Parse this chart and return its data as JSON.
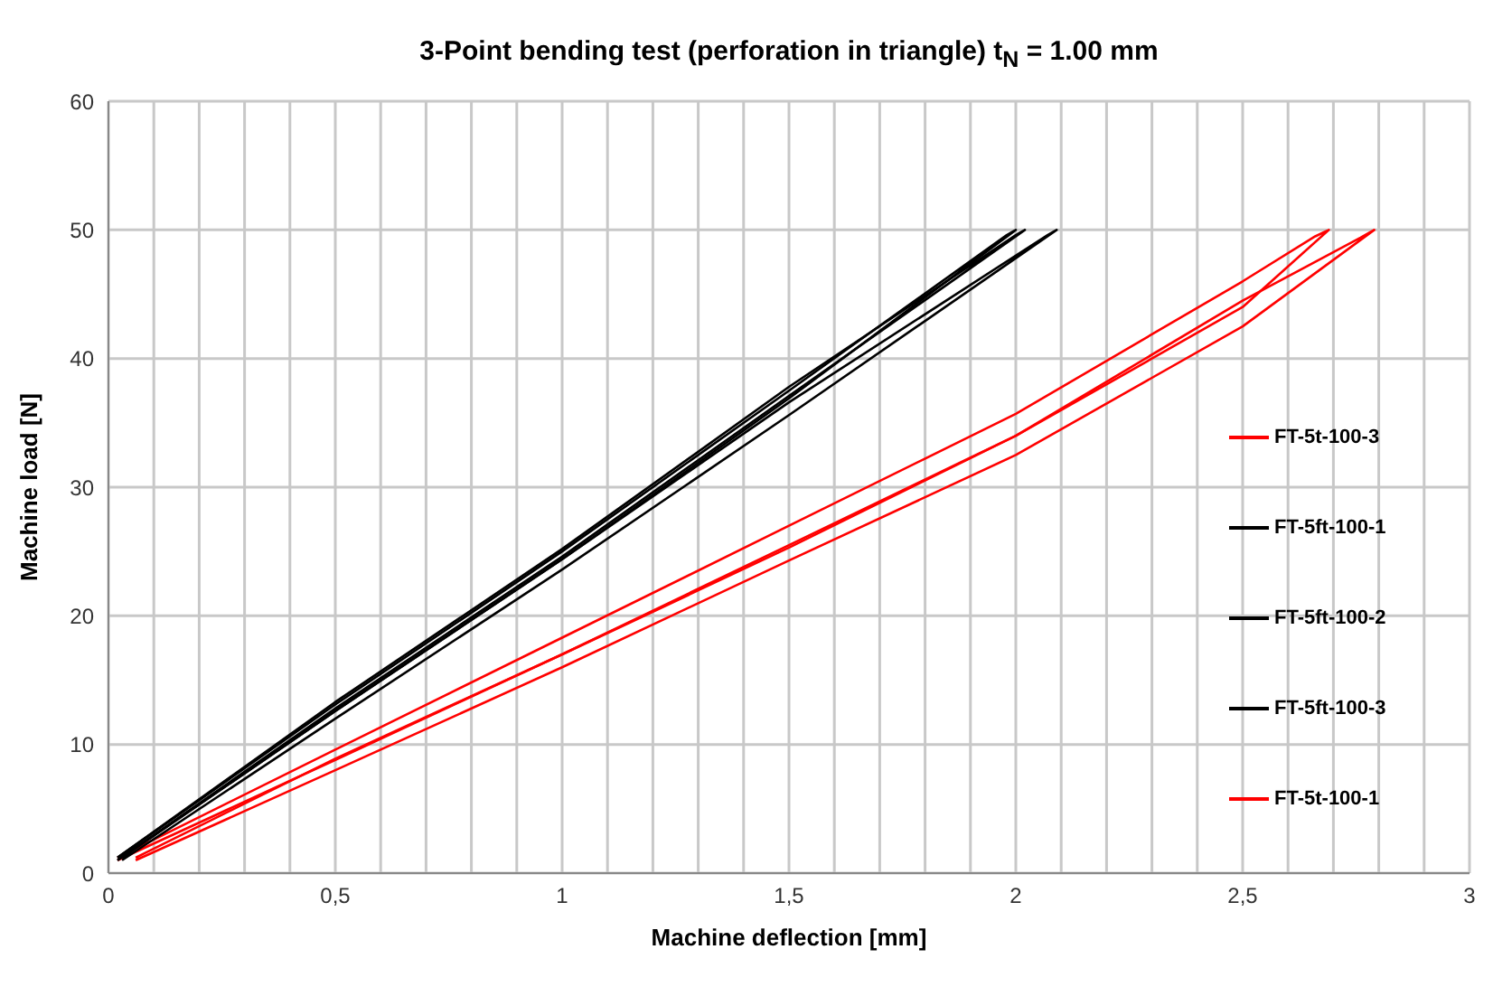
{
  "chart_data": {
    "type": "line",
    "title": "3-Point bending test (perforation in triangle) t$_{N}$ = 1.00 mm",
    "xlabel": "Machine deflection [mm]",
    "ylabel": "Machine load [N]",
    "xlim": [
      0,
      3
    ],
    "ylim": [
      0,
      60
    ],
    "xticks": [
      0,
      {
        "value": 0.1,
        "label": null
      },
      {
        "value": 0.2,
        "label": null
      },
      {
        "value": 0.3,
        "label": null
      },
      {
        "value": 0.4,
        "label": null
      },
      {
        "value": 0.5,
        "label": "0,5"
      },
      {
        "value": 0.6,
        "label": null
      },
      {
        "value": 0.7,
        "label": null
      },
      {
        "value": 0.8,
        "label": null
      },
      {
        "value": 0.9,
        "label": null
      },
      1,
      {
        "value": 1.1,
        "label": null
      },
      {
        "value": 1.2,
        "label": null
      },
      {
        "value": 1.3,
        "label": null
      },
      {
        "value": 1.4,
        "label": null
      },
      {
        "value": 1.5,
        "label": "1,5"
      },
      {
        "value": 1.6,
        "label": null
      },
      {
        "value": 1.7,
        "label": null
      },
      {
        "value": 1.8,
        "label": null
      },
      {
        "value": 1.9,
        "label": null
      },
      2,
      {
        "value": 2.1,
        "label": null
      },
      {
        "value": 2.2,
        "label": null
      },
      {
        "value": 2.3,
        "label": null
      },
      {
        "value": 2.4,
        "label": null
      },
      {
        "value": 2.5,
        "label": "2,5"
      },
      {
        "value": 2.6,
        "label": null
      },
      {
        "value": 2.7,
        "label": null
      },
      {
        "value": 2.8,
        "label": null
      },
      {
        "value": 2.9,
        "label": null
      },
      3
    ],
    "yticks": [
      0,
      10,
      20,
      30,
      40,
      50,
      60
    ],
    "grid": true,
    "legend": "right",
    "marker": "none",
    "line_style": "solid",
    "series": [
      {
        "name": "FT-5t-100-3",
        "color": "#ff0000",
        "x": [
          0.02,
          0.5,
          1,
          1.5,
          2,
          2.5,
          2.69,
          2.66,
          2.5,
          2,
          1.5,
          1,
          0.5,
          0.02
        ],
        "values": [
          1,
          8.8,
          17,
          25.3,
          34,
          44,
          50,
          49.5,
          46,
          35.7,
          27,
          18.3,
          9.6,
          1.2
        ]
      },
      {
        "name": "FT-5ft-100-1",
        "color": "#000000",
        "x": [
          0.02,
          0.5,
          1,
          1.5,
          2.02,
          2,
          1.5,
          1,
          0.5,
          0.02
        ],
        "values": [
          1,
          12.8,
          24.6,
          37.1,
          50,
          49.6,
          37.8,
          25.2,
          13.3,
          1.2
        ]
      },
      {
        "name": "FT-5ft-100-2",
        "color": "#000000",
        "x": [
          0.02,
          0.5,
          1,
          1.5,
          2,
          1.98,
          1.5,
          1,
          0.5,
          0.02
        ],
        "values": [
          1,
          12.6,
          24.4,
          36.9,
          50,
          49.6,
          37.5,
          25,
          13.1,
          1.2
        ]
      },
      {
        "name": "FT-5ft-100-3",
        "color": "#000000",
        "x": [
          0.03,
          0.5,
          1,
          1.5,
          2.09,
          2.07,
          1.5,
          1,
          0.5,
          0.03
        ],
        "values": [
          1,
          12,
          23.6,
          35.6,
          50,
          49.6,
          36.6,
          24.4,
          12.6,
          1.2
        ]
      },
      {
        "name": "FT-5t-100-1",
        "color": "#ff0000",
        "x": [
          0.06,
          0.5,
          1,
          1.5,
          2,
          2.5,
          2.79,
          2.76,
          2.5,
          2,
          1.5,
          1,
          0.5,
          0.06
        ],
        "values": [
          1,
          8,
          16,
          24.3,
          32.5,
          42.5,
          50,
          49.4,
          44.5,
          34,
          25.5,
          17,
          8.9,
          1.2
        ]
      }
    ]
  }
}
